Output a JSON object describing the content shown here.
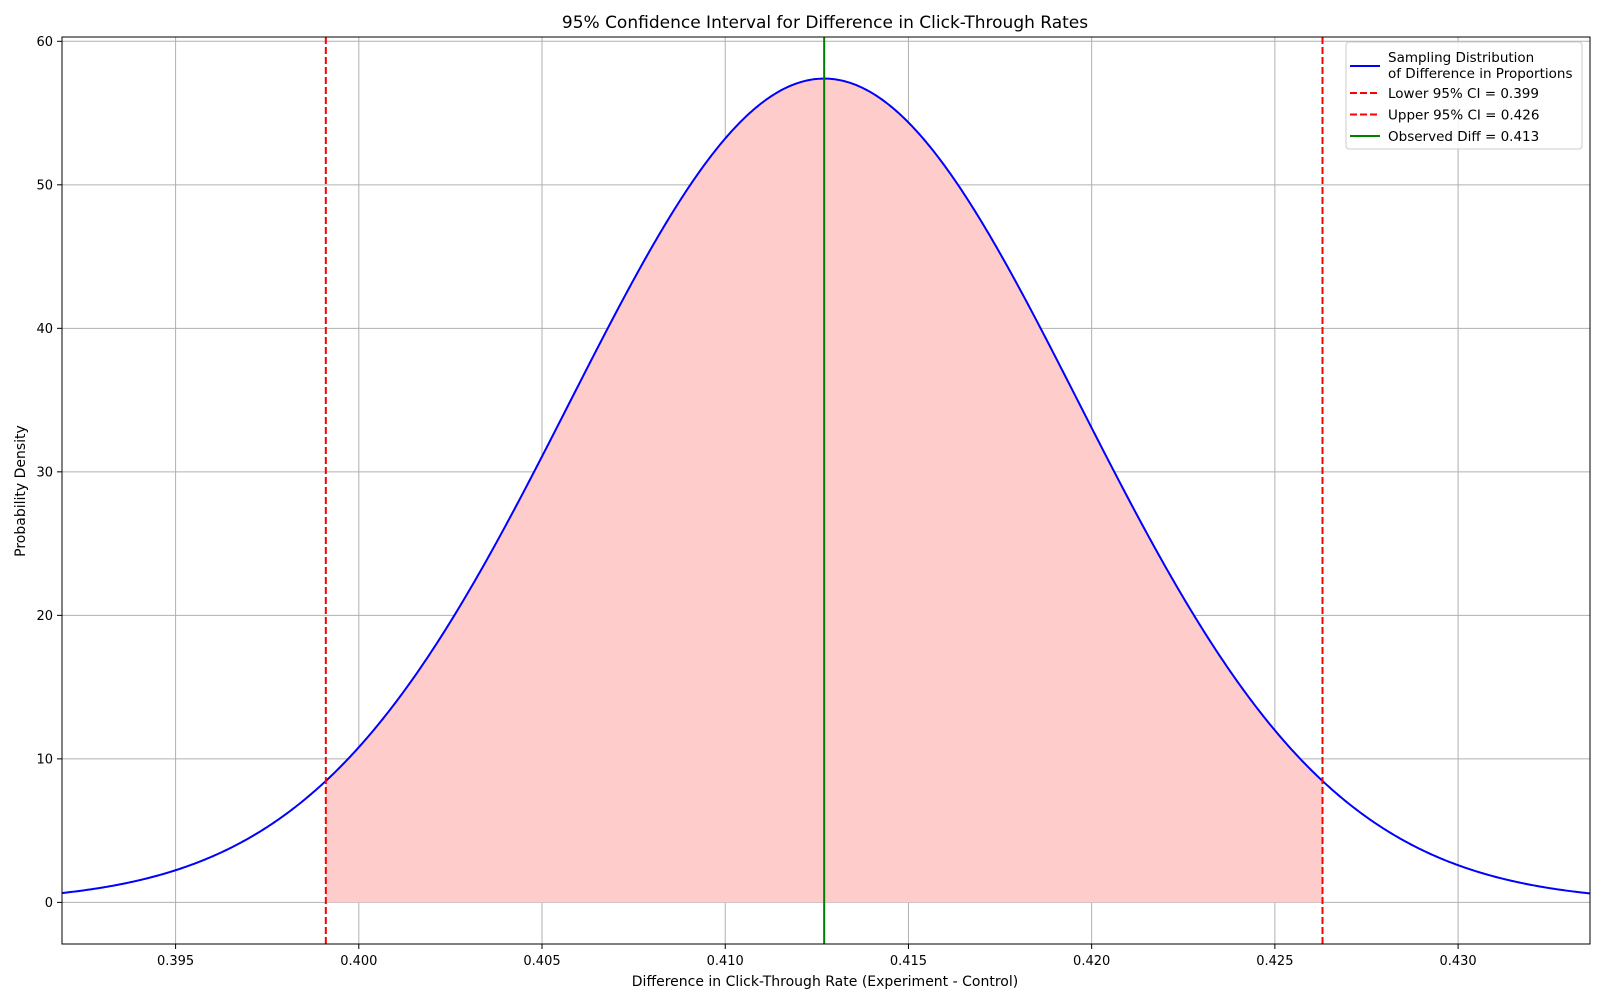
{
  "chart_data": {
    "type": "line",
    "title": "95% Confidence Interval for Difference in Click-Through Rates",
    "xlabel": "Difference in Click-Through Rate (Experiment - Control)",
    "ylabel": "Probability Density",
    "xlim": [
      0.3919,
      0.4336
    ],
    "ylim": [
      -2.9,
      60.3
    ],
    "x_ticks": [
      0.395,
      0.4,
      0.405,
      0.41,
      0.415,
      0.42,
      0.425,
      0.43
    ],
    "x_tick_labels": [
      "0.395",
      "0.400",
      "0.405",
      "0.410",
      "0.415",
      "0.420",
      "0.425",
      "0.430"
    ],
    "y_ticks": [
      0,
      10,
      20,
      30,
      40,
      50,
      60
    ],
    "y_tick_labels": [
      "0",
      "10",
      "20",
      "30",
      "40",
      "50",
      "60"
    ],
    "grid": true,
    "legend_position": "top-right",
    "series": [
      {
        "name": "Sampling Distribution\nof Difference in Proportions",
        "legend_lines": [
          "Sampling Distribution",
          "of Difference in Proportions"
        ],
        "kind": "normal-curve",
        "mean": 0.4127,
        "std": 0.00695,
        "color": "#0000ff"
      }
    ],
    "shaded_region": {
      "from": 0.3991,
      "to": 0.4263,
      "color": "#ffcccc"
    },
    "vertical_lines": [
      {
        "name": "Lower 95% CI = 0.399",
        "x": 0.3991,
        "color": "#ff0000",
        "style": "dashed"
      },
      {
        "name": "Upper 95% CI = 0.426",
        "x": 0.4263,
        "color": "#ff0000",
        "style": "dashed"
      },
      {
        "name": "Observed Diff = 0.413",
        "x": 0.4127,
        "color": "#008000",
        "style": "solid"
      }
    ],
    "colors": {
      "grid": "#b0b0b0",
      "axes": "#000000",
      "background": "#ffffff"
    }
  }
}
